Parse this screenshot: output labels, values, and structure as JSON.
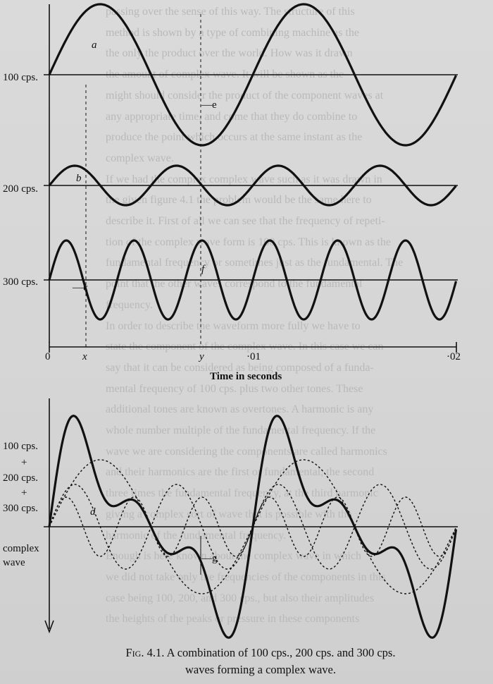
{
  "page": {
    "background_color": "#d8d8d8",
    "ink_color": "#111111",
    "bleed_color": "#b9b9b9"
  },
  "figure": {
    "label_100": "100 cps.",
    "label_200": "200 cps.",
    "label_300": "300 cps.",
    "combined_labels": [
      "100 cps.",
      "+",
      "200 cps.",
      "+",
      "300 cps.",
      "complex",
      "wave"
    ],
    "marker_a": "a",
    "marker_b": "b",
    "marker_c": "—c",
    "marker_d": "d",
    "marker_e": "—e",
    "marker_f": "f",
    "marker_g": "—g",
    "axis_ticks": [
      "0",
      "x",
      "y",
      "·01",
      "·02"
    ],
    "axis_title": "Time in seconds",
    "caption_fig": "Fig. 4.1.",
    "caption_text": "A combination of 100 cps., 200 cps. and 300 cps.",
    "caption_line2": "waves forming a complex wave."
  },
  "bleed_through_lines": [
    "passing over the sense of this way. The structure of this",
    "method is shown by a type of combining machine as the",
    "the only the product over the world. How was it drawn",
    "the amount of complex wave. It will be shown as the",
    "might should consider the product of the component waves at",
    "any appropriate time, and come that they do combine to",
    "produce the point which occurs at the same instant as the",
    "complex wave.",
    "If we had the complex complex wave such as it was drawn in",
    "the given figure 4.1 the problem would be the same here to",
    "describe it. First of all we can see that the frequency of repeti-",
    "tion of the complex wave form is 100 cps. This is known as the",
    "fundamental frequency or sometimes just as the fundamental. The",
    "point that the other waves correspond to the fundamental",
    "frequency.",
    "In order to describe the waveform more fully we have to",
    "state the component of the complex wave. In this case we can",
    "say that it can be considered as being composed of a funda-",
    "mental frequency of 100 cps. plus two other tones. These",
    "additional tones are known as overtones. A harmonic is any",
    "whole number multiple of the fundamental frequency. If the",
    "wave we are considering the components are called harmonics",
    "and their harmonics are the first or fundamental, the second",
    "three times the fundamental frequency, at the third harmonic",
    "giving a complex sort of wave that is possible with the",
    "harmonic of the fundamental frequency.",
    "Enough is here known about the complex wave in which",
    "we did not take only the frequencies of the components in this",
    "case being 100, 200, and 300 cps., but also their amplitudes",
    "the heights of the peaks or pressure in these components"
  ]
}
